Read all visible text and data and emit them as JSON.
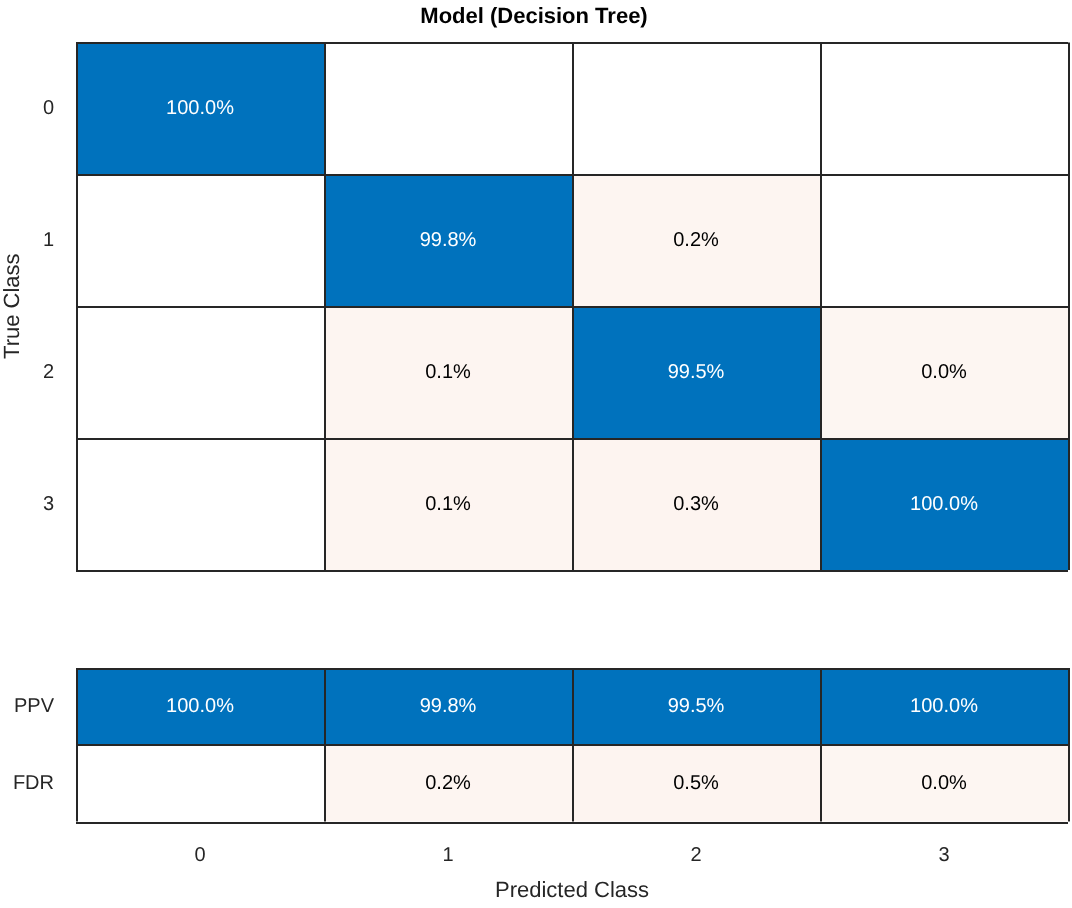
{
  "chart_data": [
    {
      "type": "heatmap",
      "title": "Model (Decision Tree)",
      "ylabel": "True Class",
      "categories": [
        "0",
        "1",
        "2",
        "3"
      ],
      "y_categories": [
        "0",
        "1",
        "2",
        "3"
      ],
      "cells": [
        [
          100.0,
          null,
          null,
          null
        ],
        [
          null,
          99.8,
          0.2,
          null
        ],
        [
          null,
          0.1,
          99.5,
          0.0
        ],
        [
          null,
          0.1,
          0.3,
          100.0
        ]
      ],
      "cell_labels": [
        [
          "100.0%",
          null,
          null,
          null
        ],
        [
          null,
          "99.8%",
          "0.2%",
          null
        ],
        [
          null,
          "0.1%",
          "99.5%",
          "0.0%"
        ],
        [
          null,
          "0.1%",
          "0.3%",
          "100.0%"
        ]
      ],
      "colors": [
        [
          "#0072bd",
          null,
          null,
          null
        ],
        [
          null,
          "#0072bd",
          "#fdf4f0",
          null
        ],
        [
          null,
          "#fdf4f0",
          "#0072bd",
          "#fdf4f0"
        ],
        [
          null,
          "#fdf4f0",
          "#fdf4f0",
          "#0072bd"
        ]
      ],
      "tick_labels": "y"
    },
    {
      "type": "heatmap",
      "xlabel": "Predicted Class",
      "categories": [
        "0",
        "1",
        "2",
        "3"
      ],
      "y_categories": [
        "PPV",
        "FDR"
      ],
      "cells": [
        [
          100.0,
          99.8,
          99.5,
          100.0
        ],
        [
          null,
          0.2,
          0.5,
          0.0
        ]
      ],
      "cell_labels": [
        [
          "100.0%",
          "99.8%",
          "99.5%",
          "100.0%"
        ],
        [
          null,
          "0.2%",
          "0.5%",
          "0.0%"
        ]
      ],
      "colors": [
        [
          "#0072bd",
          "#0072bd",
          "#0072bd",
          "#0072bd"
        ],
        [
          null,
          "#fdf4f0",
          "#fdf4f0",
          "#fdf4f0"
        ]
      ]
    }
  ]
}
